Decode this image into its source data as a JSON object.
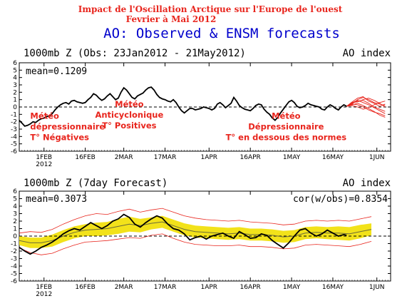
{
  "header": {
    "french_line1": "Impact de l'Oscillation Arctique sur l'Europe de l'ouest",
    "french_line2": "Fevrier à Mai 2012",
    "main_title": "AO: Observed & ENSM forecasts"
  },
  "colors": {
    "title": "#0000cc",
    "annotation": "#e8251d",
    "observed": "#000000",
    "forecast_members": "#e8251d",
    "spread_band": "#f2e21a",
    "ensemble_mean": "#6b6b3a",
    "frame": "#000000"
  },
  "chart_data": [
    {
      "type": "line",
      "title": "1000mb Z (Obs: 23Jan2012 - 21May2012)",
      "right_label": "AO index",
      "stat_label": "mean=0.1209",
      "ylim": [
        -6,
        6
      ],
      "y_ticks": [
        6,
        5,
        4,
        3,
        2,
        1,
        0,
        -1,
        -2,
        -3,
        -4,
        -5,
        -6
      ],
      "x_ticks": [
        {
          "day": 9,
          "label": "1FEB",
          "sub": "2012"
        },
        {
          "day": 24,
          "label": "16FEB",
          "sub": ""
        },
        {
          "day": 38,
          "label": "2MAR",
          "sub": ""
        },
        {
          "day": 53,
          "label": "17MAR",
          "sub": ""
        },
        {
          "day": 69,
          "label": "1APR",
          "sub": ""
        },
        {
          "day": 84,
          "label": "16APR",
          "sub": ""
        },
        {
          "day": 99,
          "label": "1MAY",
          "sub": ""
        },
        {
          "day": 114,
          "label": "16MAY",
          "sub": ""
        },
        {
          "day": 130,
          "label": "1JUN",
          "sub": ""
        }
      ],
      "observed": {
        "x": [
          0,
          1,
          2,
          3,
          4,
          5,
          6,
          7,
          8,
          9,
          10,
          11,
          12,
          13,
          14,
          15,
          16,
          17,
          18,
          19,
          20,
          21,
          22,
          23,
          24,
          25,
          26,
          27,
          28,
          29,
          30,
          31,
          32,
          33,
          34,
          35,
          36,
          37,
          38,
          39,
          40,
          41,
          42,
          43,
          44,
          45,
          46,
          47,
          48,
          49,
          50,
          51,
          52,
          53,
          54,
          55,
          56,
          57,
          58,
          59,
          60,
          61,
          62,
          63,
          64,
          65,
          66,
          67,
          68,
          69,
          70,
          71,
          72,
          73,
          74,
          75,
          76,
          77,
          78,
          79,
          80,
          81,
          82,
          83,
          84,
          85,
          86,
          87,
          88,
          89,
          90,
          91,
          92,
          93,
          94,
          95,
          96,
          97,
          98,
          99,
          100,
          101,
          102,
          103,
          104,
          105,
          106,
          107,
          108,
          109,
          110,
          111,
          112,
          113,
          114,
          115,
          116,
          117,
          118,
          119
        ],
        "y": [
          -1.8,
          -2.2,
          -2.6,
          -2.5,
          -2.3,
          -2.0,
          -2.1,
          -1.8,
          -1.6,
          -1.5,
          -1.3,
          -1.2,
          -0.9,
          -0.4,
          0.0,
          0.3,
          0.5,
          0.6,
          0.4,
          0.8,
          0.9,
          0.7,
          0.6,
          0.5,
          0.6,
          1.0,
          1.3,
          1.8,
          1.6,
          1.2,
          0.9,
          1.1,
          1.5,
          1.8,
          1.4,
          1.0,
          1.2,
          2.0,
          2.6,
          2.3,
          1.8,
          1.3,
          1.1,
          1.5,
          1.7,
          1.9,
          2.3,
          2.6,
          2.7,
          2.3,
          1.7,
          1.3,
          1.1,
          1.0,
          0.8,
          0.7,
          1.0,
          0.6,
          0.0,
          -0.5,
          -0.8,
          -0.5,
          -0.2,
          -0.2,
          -0.4,
          -0.3,
          -0.2,
          0.0,
          -0.1,
          -0.2,
          -0.4,
          -0.2,
          0.4,
          0.6,
          0.3,
          -0.1,
          0.2,
          0.5,
          1.3,
          0.8,
          0.2,
          -0.1,
          -0.3,
          -0.4,
          -0.5,
          -0.2,
          0.2,
          0.4,
          0.3,
          -0.3,
          -0.7,
          -1.0,
          -1.5,
          -1.8,
          -1.4,
          -0.8,
          -0.3,
          0.2,
          0.7,
          0.9,
          0.6,
          0.1,
          -0.1,
          0.0,
          0.2,
          0.5,
          0.3,
          0.2,
          0.1,
          0.0,
          -0.3,
          -0.4,
          0.0,
          0.3,
          0.1,
          -0.2,
          -0.4,
          0.0,
          0.3,
          0.1
        ]
      },
      "forecast_members": [
        {
          "x": [
            119,
            121,
            123,
            125,
            127,
            129,
            131,
            133
          ],
          "y": [
            0.1,
            0.6,
            0.9,
            0.6,
            0.3,
            -0.1,
            -0.5,
            -0.9
          ]
        },
        {
          "x": [
            119,
            121,
            123,
            125,
            127,
            129,
            131,
            133
          ],
          "y": [
            0.1,
            0.4,
            1.0,
            1.3,
            1.0,
            0.6,
            0.4,
            0.2
          ]
        },
        {
          "x": [
            119,
            121,
            123,
            125,
            127,
            129,
            131,
            133
          ],
          "y": [
            0.1,
            0.3,
            0.5,
            0.2,
            -0.2,
            -0.6,
            -1.1,
            -1.4
          ]
        },
        {
          "x": [
            119,
            121,
            123,
            125,
            127,
            129,
            131,
            133
          ],
          "y": [
            0.1,
            0.7,
            1.2,
            1.4,
            0.8,
            0.5,
            0.1,
            0.4
          ]
        },
        {
          "x": [
            119,
            121,
            123,
            125,
            127,
            129,
            131,
            133
          ],
          "y": [
            0.1,
            0.2,
            0.0,
            -0.3,
            -0.1,
            0.3,
            0.6,
            0.8
          ]
        },
        {
          "x": [
            119,
            121,
            123,
            125,
            127,
            129,
            131,
            133
          ],
          "y": [
            0.1,
            0.5,
            0.8,
            0.9,
            0.5,
            0.0,
            -0.3,
            -0.6
          ]
        },
        {
          "x": [
            119,
            121,
            123,
            125,
            127,
            129,
            131,
            133
          ],
          "y": [
            0.1,
            0.4,
            0.3,
            0.0,
            -0.4,
            -0.7,
            -0.9,
            -1.2
          ]
        },
        {
          "x": [
            119,
            121,
            123,
            125,
            127,
            129,
            131,
            133
          ],
          "y": [
            0.1,
            0.6,
            0.7,
            1.0,
            1.2,
            0.9,
            0.5,
            0.0
          ]
        }
      ],
      "annotations": [
        {
          "lines": [
            "Météo",
            "dépressionnaire",
            "T° Négatives"
          ],
          "day": 4,
          "value": -1.6,
          "anchor": "start"
        },
        {
          "lines": [
            "Météo",
            "Anticyclonique",
            "T° Positives"
          ],
          "day": 40,
          "value": 0.0,
          "anchor": "middle"
        },
        {
          "lines": [
            "Météo",
            "Dépressionnaire",
            "T° en dessous des normes"
          ],
          "day": 97,
          "value": -1.6,
          "anchor": "middle"
        }
      ]
    },
    {
      "type": "line",
      "title": "1000mb Z (7day Forecast)",
      "right_label": "AO index",
      "stat_label": "mean=0.3073",
      "corr_label": "cor(w/obs)=0.8354",
      "ylim": [
        -6,
        6
      ],
      "y_ticks": [
        6,
        5,
        4,
        3,
        2,
        1,
        0,
        -1,
        -2,
        -3,
        -4,
        -5,
        -6
      ],
      "x_ticks": [
        {
          "day": 9,
          "label": "1FEB",
          "sub": "2012"
        },
        {
          "day": 24,
          "label": "16FEB",
          "sub": ""
        },
        {
          "day": 38,
          "label": "2MAR",
          "sub": ""
        },
        {
          "day": 53,
          "label": "17MAR",
          "sub": ""
        },
        {
          "day": 69,
          "label": "1APR",
          "sub": ""
        },
        {
          "day": 84,
          "label": "16APR",
          "sub": ""
        },
        {
          "day": 99,
          "label": "1MAY",
          "sub": ""
        },
        {
          "day": 114,
          "label": "16MAY",
          "sub": ""
        },
        {
          "day": 130,
          "label": "1JUN",
          "sub": ""
        }
      ],
      "observed": {
        "x": [
          0,
          2,
          4,
          6,
          8,
          10,
          12,
          14,
          16,
          18,
          20,
          22,
          24,
          26,
          28,
          30,
          32,
          34,
          36,
          38,
          40,
          42,
          44,
          46,
          48,
          50,
          52,
          54,
          56,
          58,
          60,
          62,
          64,
          66,
          68,
          70,
          72,
          74,
          76,
          78,
          80,
          82,
          84,
          86,
          88,
          90,
          92,
          94,
          96,
          98,
          100,
          102,
          104,
          106,
          108,
          110,
          112,
          114,
          116,
          118,
          119
        ],
        "y": [
          -1.5,
          -2.0,
          -2.4,
          -2.0,
          -1.5,
          -1.2,
          -0.8,
          -0.3,
          0.3,
          0.7,
          1.0,
          0.8,
          1.3,
          1.8,
          1.4,
          1.0,
          1.4,
          2.0,
          2.3,
          2.9,
          2.5,
          1.6,
          1.2,
          1.8,
          2.3,
          2.7,
          2.4,
          1.6,
          1.0,
          0.8,
          0.3,
          -0.5,
          -0.2,
          0.0,
          -0.4,
          0.0,
          0.2,
          0.4,
          0.0,
          -0.3,
          0.6,
          0.2,
          -0.3,
          -0.2,
          0.3,
          0.1,
          -0.6,
          -1.1,
          -1.6,
          -0.9,
          0.0,
          0.8,
          1.0,
          0.4,
          0.0,
          0.3,
          0.8,
          0.4,
          0.0,
          0.2,
          0.1
        ]
      },
      "ensemble_mean": {
        "x": [
          0,
          4,
          8,
          12,
          16,
          20,
          24,
          28,
          32,
          36,
          40,
          44,
          48,
          52,
          56,
          60,
          64,
          68,
          72,
          76,
          80,
          84,
          88,
          92,
          96,
          100,
          104,
          108,
          112,
          116,
          120,
          124,
          128
        ],
        "y": [
          -0.6,
          -0.9,
          -0.9,
          -0.6,
          0.0,
          0.5,
          0.8,
          0.9,
          1.0,
          1.3,
          1.6,
          1.4,
          1.7,
          1.9,
          1.4,
          0.9,
          0.6,
          0.5,
          0.4,
          0.3,
          0.4,
          0.2,
          0.2,
          0.1,
          -0.1,
          0.0,
          0.4,
          0.5,
          0.4,
          0.4,
          0.3,
          0.6,
          0.9
        ]
      },
      "spread_upper": {
        "x": [
          0,
          4,
          8,
          12,
          16,
          20,
          24,
          28,
          32,
          36,
          40,
          44,
          48,
          52,
          56,
          60,
          64,
          68,
          72,
          76,
          80,
          84,
          88,
          92,
          96,
          100,
          104,
          108,
          112,
          116,
          120,
          124,
          128
        ],
        "y": [
          0.0,
          -0.2,
          -0.2,
          0.2,
          0.8,
          1.3,
          1.6,
          1.8,
          1.9,
          2.3,
          2.6,
          2.3,
          2.5,
          2.7,
          2.2,
          1.7,
          1.4,
          1.3,
          1.2,
          1.1,
          1.2,
          1.0,
          1.0,
          0.9,
          0.7,
          0.8,
          1.2,
          1.3,
          1.2,
          1.3,
          1.2,
          1.5,
          1.7
        ]
      },
      "spread_lower": {
        "x": [
          0,
          4,
          8,
          12,
          16,
          20,
          24,
          28,
          32,
          36,
          40,
          44,
          48,
          52,
          56,
          60,
          64,
          68,
          72,
          76,
          80,
          84,
          88,
          92,
          96,
          100,
          104,
          108,
          112,
          116,
          120,
          124,
          128
        ],
        "y": [
          -1.2,
          -1.6,
          -1.6,
          -1.4,
          -0.8,
          -0.3,
          0.0,
          0.0,
          0.1,
          0.3,
          0.6,
          0.5,
          0.9,
          1.1,
          0.6,
          0.1,
          -0.2,
          -0.3,
          -0.4,
          -0.5,
          -0.4,
          -0.6,
          -0.6,
          -0.7,
          -0.9,
          -0.8,
          -0.4,
          -0.3,
          -0.4,
          -0.5,
          -0.6,
          -0.3,
          0.1
        ]
      },
      "envelope_upper": {
        "x": [
          0,
          4,
          8,
          12,
          16,
          20,
          24,
          28,
          32,
          36,
          40,
          44,
          48,
          52,
          56,
          60,
          64,
          68,
          72,
          76,
          80,
          84,
          88,
          92,
          96,
          100,
          104,
          108,
          112,
          116,
          120,
          124,
          128
        ],
        "y": [
          0.4,
          0.6,
          0.5,
          0.9,
          1.6,
          2.2,
          2.7,
          3.0,
          2.9,
          3.3,
          3.6,
          3.2,
          3.5,
          3.7,
          3.2,
          2.7,
          2.4,
          2.2,
          2.1,
          2.0,
          2.1,
          1.9,
          1.8,
          1.7,
          1.5,
          1.6,
          2.0,
          2.1,
          2.0,
          2.1,
          2.0,
          2.3,
          2.6
        ]
      },
      "envelope_lower": {
        "x": [
          0,
          4,
          8,
          12,
          16,
          20,
          24,
          28,
          32,
          36,
          40,
          44,
          48,
          52,
          56,
          60,
          64,
          68,
          72,
          76,
          80,
          84,
          88,
          92,
          96,
          100,
          104,
          108,
          112,
          116,
          120,
          124,
          128
        ],
        "y": [
          -1.6,
          -2.2,
          -2.5,
          -2.3,
          -1.7,
          -1.2,
          -0.8,
          -0.7,
          -0.6,
          -0.4,
          -0.2,
          -0.3,
          0.1,
          0.3,
          -0.3,
          -0.8,
          -1.1,
          -1.2,
          -1.3,
          -1.3,
          -1.2,
          -1.4,
          -1.4,
          -1.5,
          -1.7,
          -1.6,
          -1.2,
          -1.1,
          -1.2,
          -1.3,
          -1.4,
          -1.1,
          -0.7
        ]
      }
    }
  ]
}
